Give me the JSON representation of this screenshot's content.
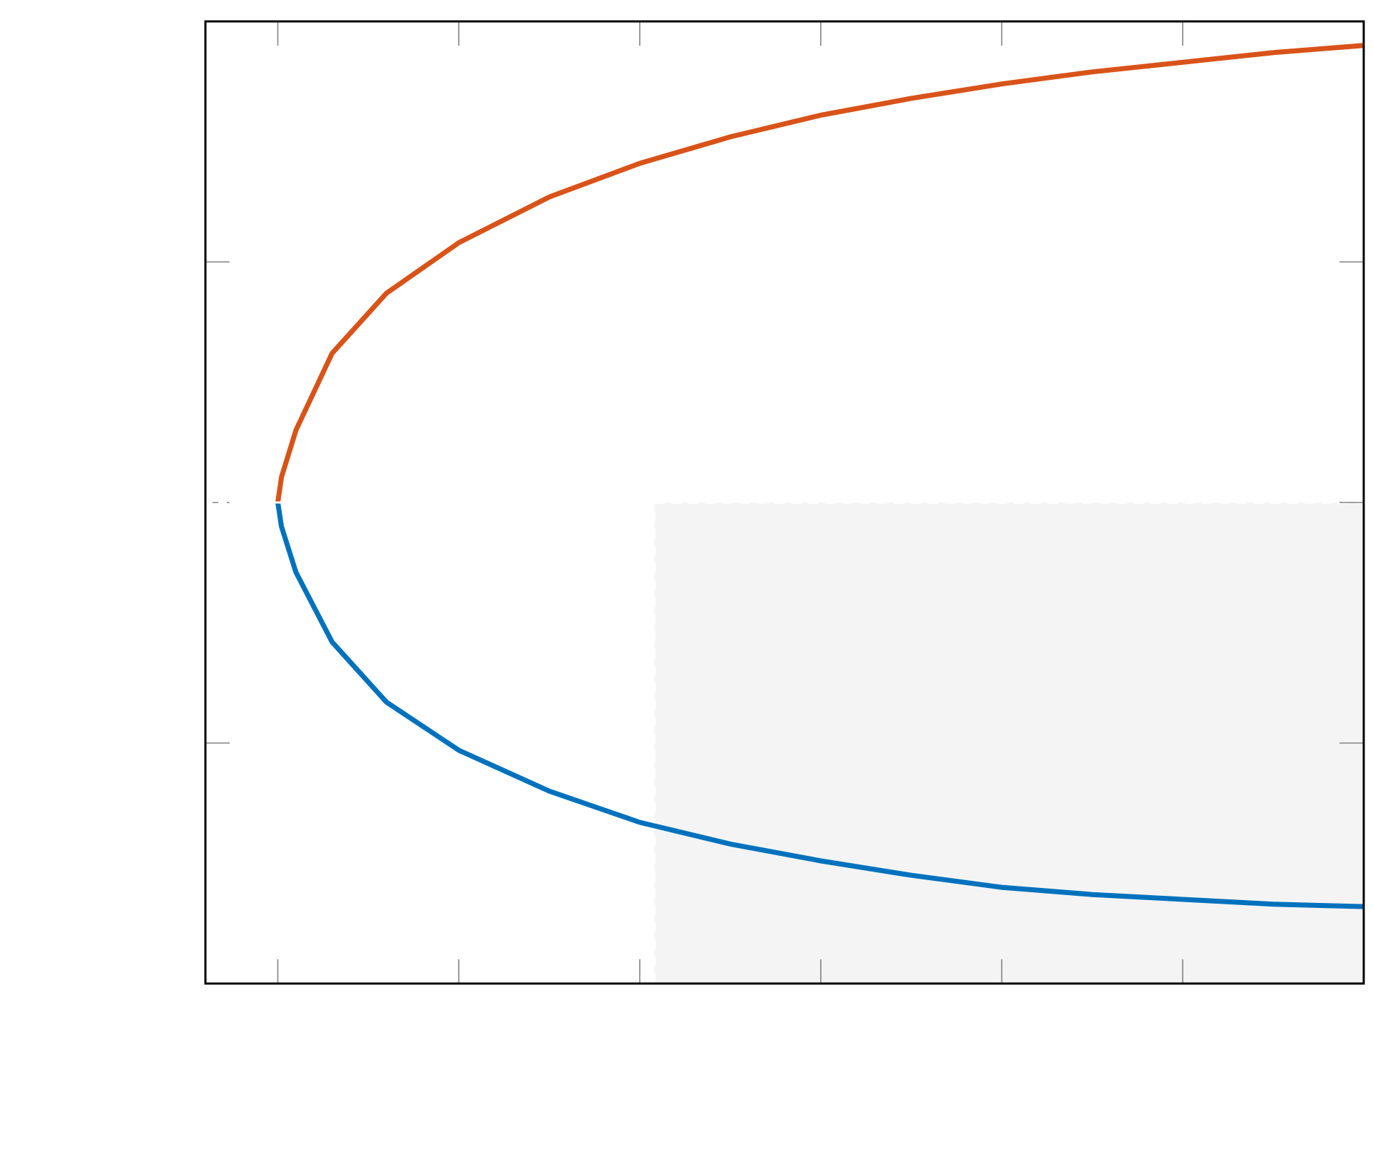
{
  "chart_data": {
    "type": "line",
    "title": "",
    "xlabel": "",
    "ylabel": "",
    "xlim": [
      -0.4,
      6.0
    ],
    "ylim": [
      -2.0,
      2.0
    ],
    "x_ticks": [
      0,
      1,
      2,
      3,
      4,
      5
    ],
    "y_ticks": [
      -1,
      0,
      1
    ],
    "grid": false,
    "legend": "none",
    "shaded_region": {
      "x": [
        2.08,
        6.0
      ],
      "y": [
        -2.0,
        0.0
      ],
      "color": "#f4f4f4"
    },
    "series": [
      {
        "color": "#d95319",
        "x": [
          0.0,
          0.02,
          0.1,
          0.3,
          0.6,
          1.0,
          1.5,
          2.0,
          2.5,
          3.0,
          3.5,
          4.0,
          4.5,
          5.0,
          5.5,
          6.0
        ],
        "y": [
          0.0,
          0.105,
          0.3,
          0.62,
          0.87,
          1.08,
          1.27,
          1.41,
          1.52,
          1.61,
          1.68,
          1.74,
          1.79,
          1.83,
          1.87,
          1.9
        ]
      },
      {
        "color": "#0072bd",
        "x": [
          0.0,
          0.02,
          0.1,
          0.3,
          0.6,
          1.0,
          1.5,
          2.0,
          2.5,
          3.0,
          3.5,
          4.0,
          4.5,
          5.0,
          5.5,
          6.0
        ],
        "y": [
          0.0,
          -0.1,
          -0.29,
          -0.58,
          -0.83,
          -1.03,
          -1.2,
          -1.33,
          -1.42,
          -1.49,
          -1.55,
          -1.6,
          -1.63,
          -1.65,
          -1.67,
          -1.68
        ]
      }
    ]
  }
}
